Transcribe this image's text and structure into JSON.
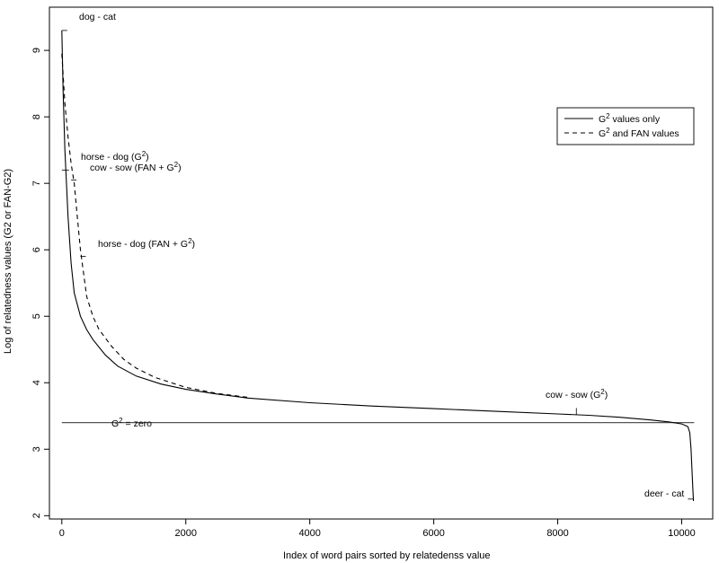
{
  "chart_data": {
    "type": "line",
    "title": "",
    "xlabel": "Index of word pairs sorted by relatedenss value",
    "ylabel": "Log of relatedness values (G2 or FAN-G2)",
    "xlim": [
      -200,
      10500
    ],
    "ylim": [
      1.95,
      9.65
    ],
    "xticks": [
      0,
      2000,
      4000,
      6000,
      8000,
      10000
    ],
    "yticks": [
      2,
      3,
      4,
      5,
      6,
      7,
      8,
      9
    ],
    "legend_position": "top-right",
    "reference_line": {
      "y": 3.4,
      "label": "G² = zero"
    },
    "series": [
      {
        "name": "G² values only",
        "style": "solid",
        "x": [
          0,
          20,
          50,
          100,
          150,
          200,
          300,
          400,
          500,
          700,
          900,
          1200,
          1600,
          2000,
          2500,
          3000,
          4000,
          5000,
          6000,
          7000,
          8000,
          8500,
          9000,
          9500,
          9800,
          10000,
          10100,
          10130,
          10150,
          10165,
          10180,
          10190
        ],
        "y": [
          9.3,
          8.4,
          7.5,
          6.5,
          5.8,
          5.35,
          5.0,
          4.8,
          4.65,
          4.42,
          4.25,
          4.1,
          3.98,
          3.9,
          3.83,
          3.77,
          3.7,
          3.65,
          3.61,
          3.57,
          3.53,
          3.51,
          3.48,
          3.44,
          3.41,
          3.38,
          3.34,
          3.25,
          3.0,
          2.7,
          2.4,
          2.22
        ]
      },
      {
        "name": "G² and FAN values",
        "style": "dashed",
        "x": [
          0,
          50,
          100,
          150,
          200,
          250,
          300,
          400,
          500,
          600,
          800,
          1000,
          1200,
          1500,
          2000,
          2500,
          3000
        ],
        "y": [
          8.95,
          8.2,
          7.7,
          7.3,
          7.0,
          6.5,
          6.0,
          5.3,
          5.0,
          4.8,
          4.55,
          4.35,
          4.22,
          4.08,
          3.93,
          3.84,
          3.78
        ]
      }
    ],
    "annotations": [
      {
        "label": "dog - cat",
        "x": 0,
        "y": 9.3
      },
      {
        "label": "horse - dog (G²)",
        "x": 0,
        "y": 7.2
      },
      {
        "label": "cow - sow (FAN + G²)",
        "x": 150,
        "y": 7.05
      },
      {
        "label": "horse - dog (FAN + G²)",
        "x": 300,
        "y": 5.9
      },
      {
        "label": "cow - sow (G²)",
        "x": 8300,
        "y": 3.52
      },
      {
        "label": "deer - cat",
        "x": 10150,
        "y": 2.25
      }
    ]
  }
}
